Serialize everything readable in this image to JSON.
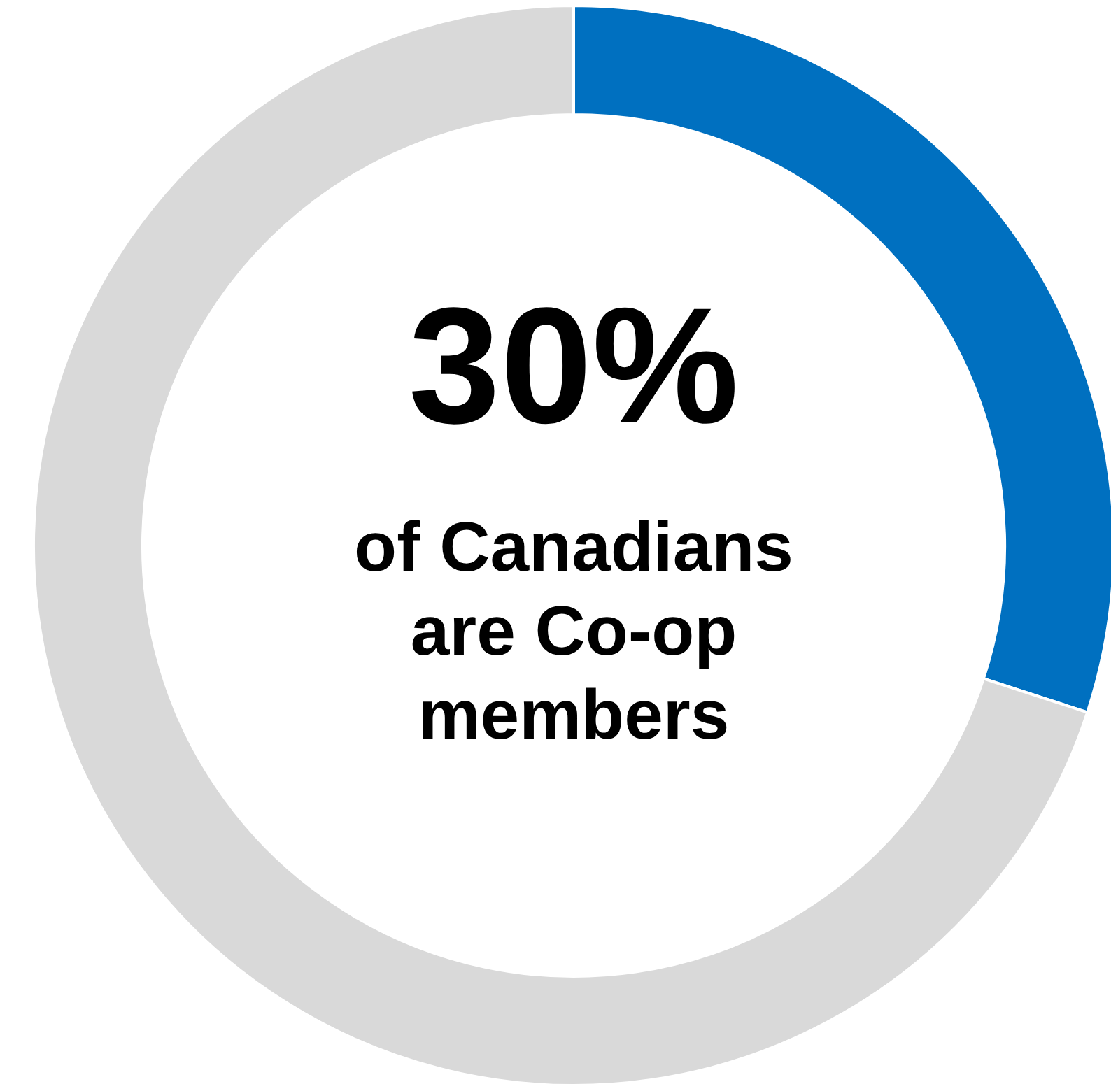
{
  "chart_data": {
    "type": "donut",
    "categories": [
      null,
      null
    ],
    "values": [
      30,
      70
    ],
    "colors": [
      "#0070c0",
      "#d9d9d9"
    ],
    "value_labels": [
      "30%",
      null
    ],
    "annotations": [
      "of Canadians are Co-op members"
    ]
  }
}
